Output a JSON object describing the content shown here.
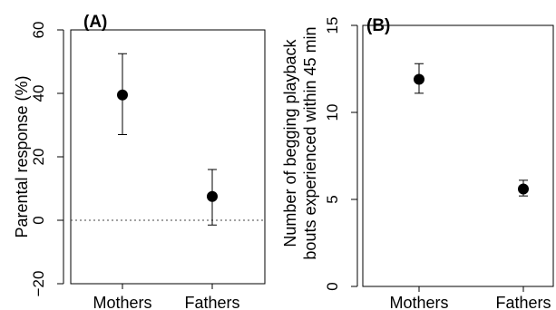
{
  "chart_data": [
    {
      "type": "scatter",
      "panel_label": "(A)",
      "title": "",
      "xlabel": "",
      "ylabel": "Parental response (%)",
      "categories": [
        "Mothers",
        "Fathers"
      ],
      "values": [
        39.5,
        7.5
      ],
      "error_low": [
        27,
        -1.5
      ],
      "error_high": [
        52.5,
        16
      ],
      "ylim": [
        -20,
        60
      ],
      "yticks": [
        -20,
        0,
        20,
        40,
        60
      ],
      "reference_line": 0,
      "reference_line_style": "dotted",
      "grid": false
    },
    {
      "type": "scatter",
      "panel_label": "(B)",
      "title": "",
      "xlabel": "",
      "ylabel_lines": [
        "Number of begging playback",
        "bouts experienced within 45 min"
      ],
      "categories": [
        "Mothers",
        "Fathers"
      ],
      "values": [
        11.9,
        5.6
      ],
      "error_low": [
        11.1,
        5.2
      ],
      "error_high": [
        12.8,
        6.1
      ],
      "ylim": [
        0,
        15
      ],
      "yticks": [
        0,
        5,
        10,
        15
      ],
      "grid": false
    }
  ]
}
